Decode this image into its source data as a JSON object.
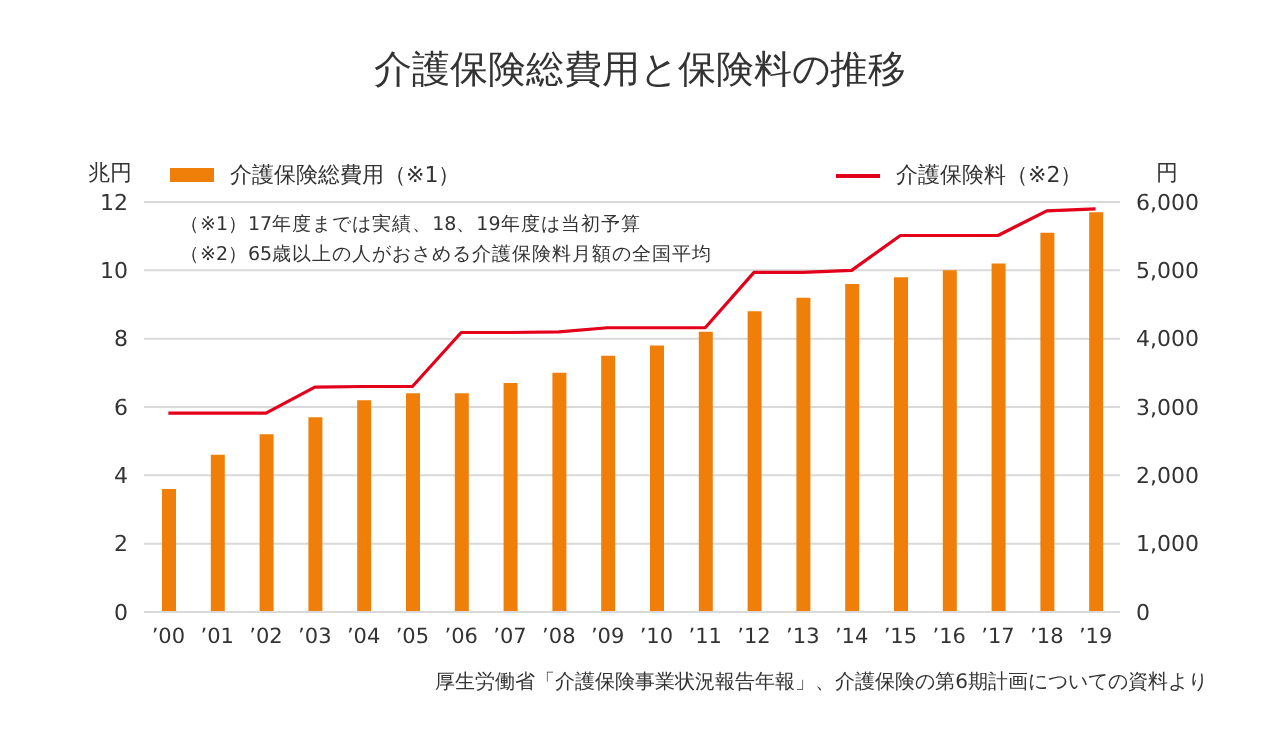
{
  "chart_data": {
    "type": "bar",
    "title": "介護保険総費用と保険料の推移",
    "ylabel": "兆円",
    "y2label": "円",
    "categories": [
      "’00",
      "’01",
      "’02",
      "’03",
      "’04",
      "’05",
      "’06",
      "’07",
      "’08",
      "’09",
      "’10",
      "’11",
      "’12",
      "’13",
      "’14",
      "’15",
      "’16",
      "’17",
      "’18",
      "’19"
    ],
    "series": [
      {
        "name": "介護保険総費用（※1）",
        "color": "#f07f09",
        "values": [
          3.6,
          4.6,
          5.2,
          5.7,
          6.2,
          6.4,
          6.4,
          6.7,
          7.0,
          7.5,
          7.8,
          8.2,
          8.8,
          9.2,
          9.6,
          9.8,
          10.0,
          10.2,
          11.1,
          11.7
        ]
      },
      {
        "name": "介護保険料（※2）",
        "type": "line",
        "axis": "y2",
        "color": "#e3001b",
        "values": [
          2910,
          2910,
          2910,
          3290,
          3300,
          3300,
          4090,
          4090,
          4100,
          4160,
          4160,
          4160,
          4970,
          4970,
          5000,
          5510,
          5510,
          5510,
          5870,
          5900
        ]
      }
    ],
    "ylim": [
      0,
      12
    ],
    "yticks": [
      0,
      2,
      4,
      6,
      8,
      10,
      12
    ],
    "y2lim": [
      0,
      6000
    ],
    "y2ticks": [
      {
        "value": 0,
        "label": "0"
      },
      {
        "value": 1000,
        "label": "1,000"
      },
      {
        "value": 2000,
        "label": "2,000"
      },
      {
        "value": 3000,
        "label": "3,000"
      },
      {
        "value": 4000,
        "label": "4,000"
      },
      {
        "value": 5000,
        "label": "5,000"
      },
      {
        "value": 6000,
        "label": "6,000"
      }
    ],
    "grid": "y",
    "legend": "top",
    "marker": "none",
    "annotations": [
      "（※1）17年度までは実績、18、19年度は当初予算",
      "（※2）65歳以上の人がおさめる介護保険料月額の全国平均",
      "厚生労働省「介護保険事業状況報告年報」、介護保険の第6期計画についての資料より"
    ]
  }
}
